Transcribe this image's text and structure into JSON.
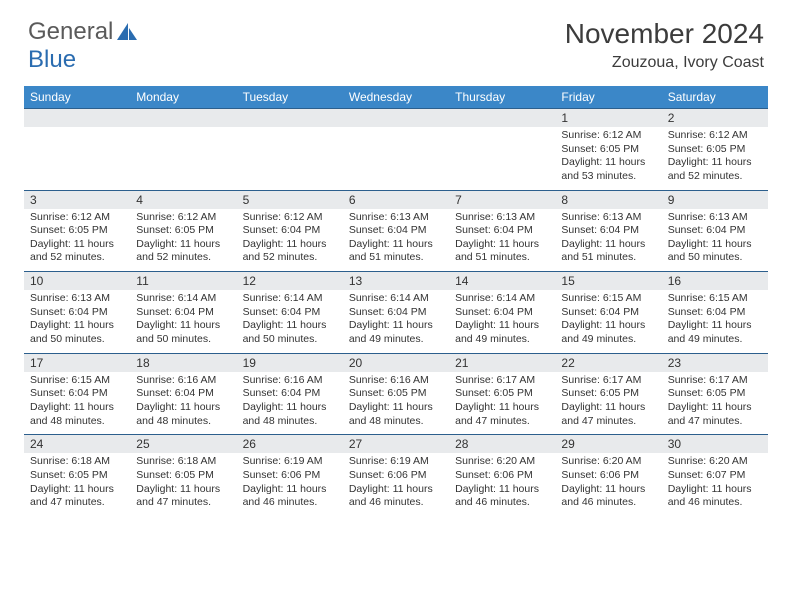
{
  "brand": {
    "word1": "General",
    "word2": "Blue",
    "accent_color": "#2a6cb0"
  },
  "title": "November 2024",
  "location": "Zouzoua, Ivory Coast",
  "header_bg": "#3b87c8",
  "header_fg": "#ffffff",
  "cell_header_bg": "#e8eaec",
  "border_color": "#2c5f8d",
  "day_names": [
    "Sunday",
    "Monday",
    "Tuesday",
    "Wednesday",
    "Thursday",
    "Friday",
    "Saturday"
  ],
  "weeks": [
    [
      {
        "n": "",
        "lines": []
      },
      {
        "n": "",
        "lines": []
      },
      {
        "n": "",
        "lines": []
      },
      {
        "n": "",
        "lines": []
      },
      {
        "n": "",
        "lines": []
      },
      {
        "n": "1",
        "lines": [
          "Sunrise: 6:12 AM",
          "Sunset: 6:05 PM",
          "Daylight: 11 hours and 53 minutes."
        ]
      },
      {
        "n": "2",
        "lines": [
          "Sunrise: 6:12 AM",
          "Sunset: 6:05 PM",
          "Daylight: 11 hours and 52 minutes."
        ]
      }
    ],
    [
      {
        "n": "3",
        "lines": [
          "Sunrise: 6:12 AM",
          "Sunset: 6:05 PM",
          "Daylight: 11 hours and 52 minutes."
        ]
      },
      {
        "n": "4",
        "lines": [
          "Sunrise: 6:12 AM",
          "Sunset: 6:05 PM",
          "Daylight: 11 hours and 52 minutes."
        ]
      },
      {
        "n": "5",
        "lines": [
          "Sunrise: 6:12 AM",
          "Sunset: 6:04 PM",
          "Daylight: 11 hours and 52 minutes."
        ]
      },
      {
        "n": "6",
        "lines": [
          "Sunrise: 6:13 AM",
          "Sunset: 6:04 PM",
          "Daylight: 11 hours and 51 minutes."
        ]
      },
      {
        "n": "7",
        "lines": [
          "Sunrise: 6:13 AM",
          "Sunset: 6:04 PM",
          "Daylight: 11 hours and 51 minutes."
        ]
      },
      {
        "n": "8",
        "lines": [
          "Sunrise: 6:13 AM",
          "Sunset: 6:04 PM",
          "Daylight: 11 hours and 51 minutes."
        ]
      },
      {
        "n": "9",
        "lines": [
          "Sunrise: 6:13 AM",
          "Sunset: 6:04 PM",
          "Daylight: 11 hours and 50 minutes."
        ]
      }
    ],
    [
      {
        "n": "10",
        "lines": [
          "Sunrise: 6:13 AM",
          "Sunset: 6:04 PM",
          "Daylight: 11 hours and 50 minutes."
        ]
      },
      {
        "n": "11",
        "lines": [
          "Sunrise: 6:14 AM",
          "Sunset: 6:04 PM",
          "Daylight: 11 hours and 50 minutes."
        ]
      },
      {
        "n": "12",
        "lines": [
          "Sunrise: 6:14 AM",
          "Sunset: 6:04 PM",
          "Daylight: 11 hours and 50 minutes."
        ]
      },
      {
        "n": "13",
        "lines": [
          "Sunrise: 6:14 AM",
          "Sunset: 6:04 PM",
          "Daylight: 11 hours and 49 minutes."
        ]
      },
      {
        "n": "14",
        "lines": [
          "Sunrise: 6:14 AM",
          "Sunset: 6:04 PM",
          "Daylight: 11 hours and 49 minutes."
        ]
      },
      {
        "n": "15",
        "lines": [
          "Sunrise: 6:15 AM",
          "Sunset: 6:04 PM",
          "Daylight: 11 hours and 49 minutes."
        ]
      },
      {
        "n": "16",
        "lines": [
          "Sunrise: 6:15 AM",
          "Sunset: 6:04 PM",
          "Daylight: 11 hours and 49 minutes."
        ]
      }
    ],
    [
      {
        "n": "17",
        "lines": [
          "Sunrise: 6:15 AM",
          "Sunset: 6:04 PM",
          "Daylight: 11 hours and 48 minutes."
        ]
      },
      {
        "n": "18",
        "lines": [
          "Sunrise: 6:16 AM",
          "Sunset: 6:04 PM",
          "Daylight: 11 hours and 48 minutes."
        ]
      },
      {
        "n": "19",
        "lines": [
          "Sunrise: 6:16 AM",
          "Sunset: 6:04 PM",
          "Daylight: 11 hours and 48 minutes."
        ]
      },
      {
        "n": "20",
        "lines": [
          "Sunrise: 6:16 AM",
          "Sunset: 6:05 PM",
          "Daylight: 11 hours and 48 minutes."
        ]
      },
      {
        "n": "21",
        "lines": [
          "Sunrise: 6:17 AM",
          "Sunset: 6:05 PM",
          "Daylight: 11 hours and 47 minutes."
        ]
      },
      {
        "n": "22",
        "lines": [
          "Sunrise: 6:17 AM",
          "Sunset: 6:05 PM",
          "Daylight: 11 hours and 47 minutes."
        ]
      },
      {
        "n": "23",
        "lines": [
          "Sunrise: 6:17 AM",
          "Sunset: 6:05 PM",
          "Daylight: 11 hours and 47 minutes."
        ]
      }
    ],
    [
      {
        "n": "24",
        "lines": [
          "Sunrise: 6:18 AM",
          "Sunset: 6:05 PM",
          "Daylight: 11 hours and 47 minutes."
        ]
      },
      {
        "n": "25",
        "lines": [
          "Sunrise: 6:18 AM",
          "Sunset: 6:05 PM",
          "Daylight: 11 hours and 47 minutes."
        ]
      },
      {
        "n": "26",
        "lines": [
          "Sunrise: 6:19 AM",
          "Sunset: 6:06 PM",
          "Daylight: 11 hours and 46 minutes."
        ]
      },
      {
        "n": "27",
        "lines": [
          "Sunrise: 6:19 AM",
          "Sunset: 6:06 PM",
          "Daylight: 11 hours and 46 minutes."
        ]
      },
      {
        "n": "28",
        "lines": [
          "Sunrise: 6:20 AM",
          "Sunset: 6:06 PM",
          "Daylight: 11 hours and 46 minutes."
        ]
      },
      {
        "n": "29",
        "lines": [
          "Sunrise: 6:20 AM",
          "Sunset: 6:06 PM",
          "Daylight: 11 hours and 46 minutes."
        ]
      },
      {
        "n": "30",
        "lines": [
          "Sunrise: 6:20 AM",
          "Sunset: 6:07 PM",
          "Daylight: 11 hours and 46 minutes."
        ]
      }
    ]
  ]
}
